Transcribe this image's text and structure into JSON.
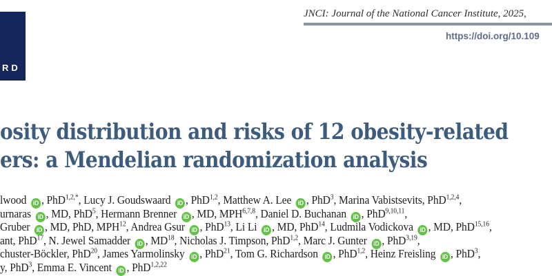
{
  "colors": {
    "logo_navy": "#15265c",
    "rule_gray": "#8c94a8",
    "doi_slate": "#5e6b87",
    "title_blue": "#3d5c7d",
    "orcid_green": "#63c147",
    "body_text": "#212121"
  },
  "masthead": {
    "logo_letters": "RD",
    "journal_line": "JNCI: Journal of the National Cancer Institute, 2025,",
    "doi_link": "https://doi.org/10.109"
  },
  "article": {
    "title_line1": "osity distribution and risks of 12 obesity-related",
    "title_line2": "ers: a Mendelian randomization analysis"
  },
  "authors": {
    "orcid_icon_label": "iD",
    "lines": [
      "lwood {{ORCID}}, PhD^{1,2,*}, Lucy J. Goudswaard {{ORCID}}, PhD^{1,2}, Matthew A. Lee {{ORCID}}, PhD^{3}, Marina Vabistsevits, PhD^{1,2,4},",
      "urnaras {{ORCID}}, MD, PhD^{5}, Hermann Brenner {{ORCID}}, MD, MPH^{6,7,8}, Daniel D. Buchanan {{ORCID}}, PhD^{9,10,11},",
      "Gruber {{ORCID}}, MD, PhD, MPH^{12}, Andrea Gsur {{ORCID}}, PhD^{13}, Li Li {{ORCID}}, MD, PhD^{14}, Ludmila Vodickova {{ORCID}}, MD, PhD^{15,16},",
      "ant, PhD^{17}, N. Jewel Samadder {{ORCID}}, MD^{18}, Nicholas J. Timpson, PhD^{1,2}, Marc J. Gunter {{ORCID}}, PhD^{3,19},",
      "chuster-Böckler, PhD^{20}, James Yarmolinsky {{ORCID}}, PhD^{21}, Tom G. Richardson {{ORCID}}, PhD^{1,2}, Heinz Freisling {{ORCID}}, PhD^{3},",
      "y, PhD^{3}, Emma E. Vincent {{ORCID}}, PhD^{1,2,22}"
    ]
  }
}
